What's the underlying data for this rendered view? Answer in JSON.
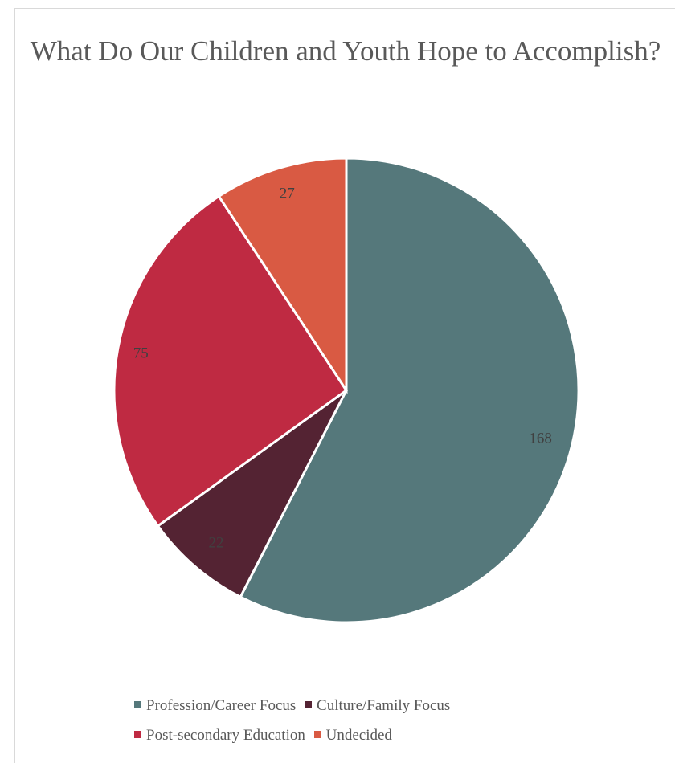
{
  "chart_data": {
    "type": "pie",
    "title": "What Do Our Children and Youth Hope to Accomplish?",
    "categories": [
      "Profession/Career Focus",
      "Culture/Family Focus",
      "Post-secondary Education",
      "Undecided"
    ],
    "values": [
      168,
      22,
      75,
      27
    ],
    "colors": [
      "#55787B",
      "#542333",
      "#BF2A42",
      "#D95A43"
    ],
    "legend_position": "bottom",
    "start_angle_deg": 0,
    "direction": "clockwise"
  }
}
